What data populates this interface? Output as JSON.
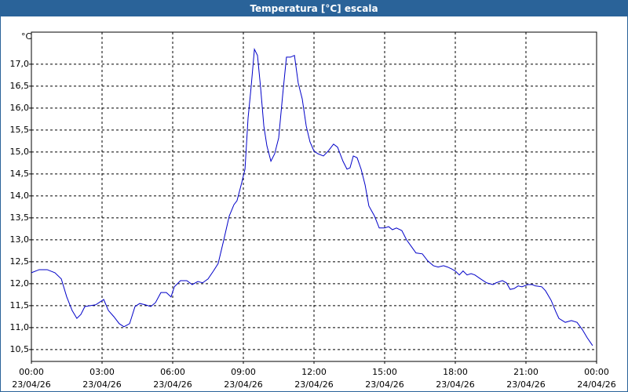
{
  "chart_data": {
    "type": "line",
    "title": "Temperatura [°C] escala",
    "ylabel": "°C",
    "color": "#0000c8",
    "grid": true,
    "xlim": [
      0,
      24
    ],
    "ylim": [
      10.23,
      17.73
    ],
    "xticks": [
      {
        "value": 0,
        "label": "00:00",
        "date": "23/04/26"
      },
      {
        "value": 3,
        "label": "03:00",
        "date": "23/04/26"
      },
      {
        "value": 6,
        "label": "06:00",
        "date": "23/04/26"
      },
      {
        "value": 9,
        "label": "09:00",
        "date": "23/04/26"
      },
      {
        "value": 12,
        "label": "12:00",
        "date": "23/04/26"
      },
      {
        "value": 15,
        "label": "15:00",
        "date": "23/04/26"
      },
      {
        "value": 18,
        "label": "18:00",
        "date": "23/04/26"
      },
      {
        "value": 21,
        "label": "21:00",
        "date": "23/04/26"
      },
      {
        "value": 24,
        "label": "00:00",
        "date": "24/04/26"
      }
    ],
    "yticks": [
      {
        "value": 10.5,
        "label": "10,5"
      },
      {
        "value": 11,
        "label": "11,0"
      },
      {
        "value": 11.5,
        "label": "11,5"
      },
      {
        "value": 12,
        "label": "12,0"
      },
      {
        "value": 12.5,
        "label": "12,5"
      },
      {
        "value": 13,
        "label": "13,0"
      },
      {
        "value": 13.5,
        "label": "13,5"
      },
      {
        "value": 14,
        "label": "14,0"
      },
      {
        "value": 14.5,
        "label": "14,5"
      },
      {
        "value": 15,
        "label": "15,0"
      },
      {
        "value": 15.5,
        "label": "15,5"
      },
      {
        "value": 16,
        "label": "16,0"
      },
      {
        "value": 16.5,
        "label": "16,5"
      },
      {
        "value": 17,
        "label": "17,0"
      }
    ],
    "x": [
      0,
      0.33,
      0.67,
      1,
      1.27,
      1.5,
      1.73,
      1.93,
      2.1,
      2.27,
      2.5,
      2.73,
      2.93,
      3.07,
      3.27,
      3.5,
      3.73,
      3.93,
      4.17,
      4.4,
      4.6,
      4.83,
      5.07,
      5.27,
      5.5,
      5.73,
      5.93,
      6.07,
      6.33,
      6.6,
      6.83,
      7.07,
      7.27,
      7.5,
      7.73,
      7.93,
      8.17,
      8.4,
      8.6,
      8.73,
      8.93,
      9.07,
      9.2,
      9.33,
      9.47,
      9.6,
      9.73,
      9.87,
      10,
      10.17,
      10.33,
      10.5,
      10.67,
      10.83,
      11,
      11.17,
      11.33,
      11.5,
      11.67,
      11.83,
      12,
      12.17,
      12.4,
      12.6,
      12.83,
      13,
      13.23,
      13.4,
      13.53,
      13.67,
      13.83,
      14,
      14.17,
      14.33,
      14.57,
      14.77,
      15,
      15.17,
      15.33,
      15.5,
      15.73,
      15.93,
      16.17,
      16.33,
      16.6,
      16.83,
      17.07,
      17.27,
      17.5,
      17.67,
      17.83,
      18,
      18.17,
      18.33,
      18.5,
      18.67,
      18.83,
      19.07,
      19.33,
      19.6,
      19.73,
      20,
      20.17,
      20.33,
      20.5,
      20.67,
      20.83,
      21.07,
      21.27,
      21.4,
      21.67,
      21.83,
      22.07,
      22.27,
      22.4,
      22.67,
      22.93,
      23.17,
      23.4,
      23.6,
      23.83
    ],
    "values": [
      12.25,
      12.32,
      12.32,
      12.25,
      12.11,
      11.7,
      11.39,
      11.21,
      11.3,
      11.48,
      11.5,
      11.52,
      11.59,
      11.64,
      11.39,
      11.25,
      11.09,
      11.02,
      11.09,
      11.48,
      11.55,
      11.52,
      11.48,
      11.57,
      11.8,
      11.8,
      11.7,
      11.93,
      12.07,
      12.07,
      11.98,
      12.05,
      12.02,
      12.11,
      12.29,
      12.46,
      13.0,
      13.54,
      13.8,
      13.89,
      14.3,
      14.61,
      15.77,
      16.48,
      17.34,
      17.2,
      16.48,
      15.59,
      15.14,
      14.79,
      14.96,
      15.32,
      16.3,
      17.16,
      17.16,
      17.2,
      16.57,
      16.21,
      15.59,
      15.23,
      15.02,
      14.96,
      14.91,
      15.02,
      15.18,
      15.11,
      14.79,
      14.61,
      14.64,
      14.91,
      14.87,
      14.61,
      14.25,
      13.77,
      13.54,
      13.27,
      13.27,
      13.3,
      13.23,
      13.27,
      13.21,
      13.0,
      12.82,
      12.7,
      12.68,
      12.52,
      12.41,
      12.38,
      12.41,
      12.38,
      12.34,
      12.29,
      12.2,
      12.29,
      12.2,
      12.23,
      12.2,
      12.11,
      12.02,
      11.98,
      12.02,
      12.07,
      12.02,
      11.87,
      11.89,
      11.95,
      11.93,
      11.98,
      11.98,
      11.95,
      11.93,
      11.84,
      11.62,
      11.36,
      11.21,
      11.12,
      11.16,
      11.12,
      10.95,
      10.77,
      10.59
    ]
  }
}
